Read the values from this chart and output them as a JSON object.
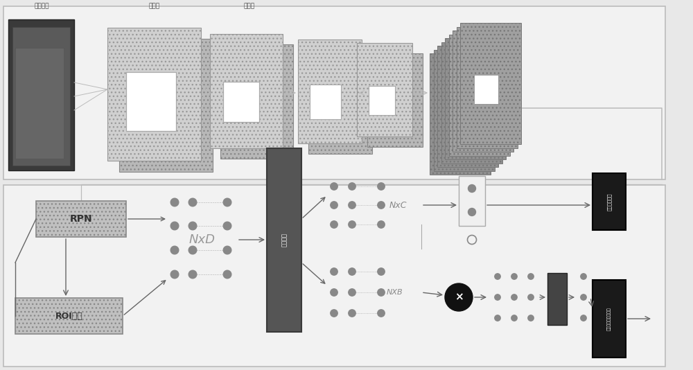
{
  "bg_color": "#e8e8e8",
  "fig_w": 10.0,
  "fig_h": 5.34,
  "labels": {
    "input": "输入图片",
    "conv": "卷积层",
    "pool": "池化层",
    "rpn": "RPN",
    "roi": "ROI池化",
    "nxd": "NxD",
    "nxc": "NxC",
    "nxb": "NXB",
    "fc": "全连接层",
    "top_result": "分类预测结果",
    "bottom_result": "图像三元组预测结果"
  },
  "colors": {
    "section_bg": "#f2f2f2",
    "section_edge": "#bbbbbb",
    "dark_gray_block": "#999999",
    "medium_gray": "#b0b0b0",
    "light_gray": "#c8c8c8",
    "lighter_gray": "#d8d8d8",
    "white": "#ffffff",
    "fc_dark": "#555555",
    "fc_darker": "#3a3a3a",
    "result_dark": "#1a1a1a",
    "arrow": "#888888",
    "dot": "#888888",
    "rpn_bg": "#bbbbbb",
    "roi_bg": "#c8c8c8",
    "x_circle": "#111111"
  }
}
